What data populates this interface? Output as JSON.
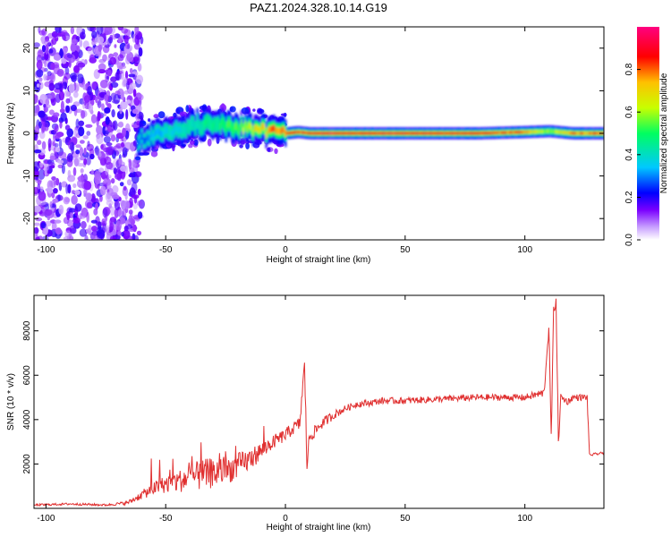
{
  "title": "PAZ1.2024.328.10.14.G19",
  "chart_data": [
    {
      "type": "heatmap",
      "xlabel": "Height of straight line (km)",
      "ylabel": "Frequency (Hz)",
      "xlim": [
        -105,
        133
      ],
      "ylim": [
        -25,
        25
      ],
      "x_ticks": [
        -100,
        -50,
        0,
        50,
        100
      ],
      "y_ticks": [
        -20,
        -10,
        0,
        10,
        20
      ],
      "colorbar": {
        "label": "Normalized spectral amplitude",
        "range": [
          0,
          1
        ],
        "ticks": [
          "0.0",
          "0.2",
          "0.4",
          "0.6",
          "0.8"
        ],
        "colormap": [
          "#ffffff",
          "#c8a0ff",
          "#7a00ff",
          "#0000ff",
          "#00c8ff",
          "#00ff60",
          "#c8ff00",
          "#ffc000",
          "#ff0000",
          "#ff0080"
        ]
      },
      "ridge": {
        "x": [
          -60,
          -50,
          -40,
          -30,
          -20,
          -10,
          -5,
          0,
          5,
          10,
          20,
          40,
          60,
          80,
          100,
          110,
          120,
          133
        ],
        "frequency": [
          -1.5,
          0.5,
          1.5,
          2.5,
          1.5,
          0.8,
          0.3,
          0,
          0.3,
          0,
          0,
          0,
          0,
          0,
          0.3,
          0.5,
          0,
          0
        ],
        "amplitude": [
          0.3,
          0.4,
          0.45,
          0.5,
          0.6,
          0.75,
          0.85,
          0.9,
          0.9,
          0.95,
          0.95,
          0.95,
          0.95,
          0.9,
          0.85,
          0.6,
          0.85,
          0.85
        ]
      },
      "noise_region_x": [
        -105,
        -60
      ]
    },
    {
      "type": "line",
      "xlabel": "Height of straight line (km)",
      "ylabel": "SNR (10 * v/v)",
      "xlim": [
        -105,
        133
      ],
      "ylim": [
        0,
        9600
      ],
      "x_ticks": [
        -100,
        -50,
        0,
        50,
        100
      ],
      "y_ticks": [
        2000,
        4000,
        6000,
        8000
      ],
      "series": [
        {
          "color": "#e03030",
          "x": [
            -105,
            -90,
            -75,
            -66,
            -60,
            -55,
            -50,
            -45,
            -40,
            -35,
            -30,
            -25,
            -20,
            -15,
            -10,
            -5,
            0,
            3,
            6,
            7,
            8,
            9,
            10,
            15,
            20,
            25,
            30,
            35,
            40,
            50,
            60,
            70,
            80,
            90,
            100,
            108,
            110,
            111,
            112,
            113,
            114,
            115,
            118,
            120,
            126,
            127,
            133
          ],
          "values": [
            150,
            200,
            150,
            250,
            600,
            900,
            1100,
            1200,
            1400,
            1500,
            1600,
            1700,
            1900,
            2200,
            2600,
            3000,
            3300,
            3600,
            3800,
            5200,
            6400,
            2000,
            3200,
            3800,
            4200,
            4500,
            4700,
            4750,
            4850,
            4850,
            4900,
            4950,
            5000,
            5000,
            5000,
            5200,
            8200,
            3200,
            8800,
            9500,
            3000,
            5000,
            4800,
            5000,
            5000,
            2400,
            2500
          ],
          "noise_amplitude": [
            50,
            50,
            50,
            80,
            200,
            300,
            400,
            500,
            600,
            700,
            700,
            600,
            600,
            500,
            400,
            300,
            300,
            300,
            300,
            400,
            400,
            400,
            300,
            250,
            200,
            150,
            150,
            150,
            150,
            150,
            150,
            150,
            150,
            150,
            150,
            200,
            300,
            300,
            300,
            300,
            300,
            200,
            150,
            150,
            150,
            60,
            60
          ]
        }
      ]
    }
  ]
}
